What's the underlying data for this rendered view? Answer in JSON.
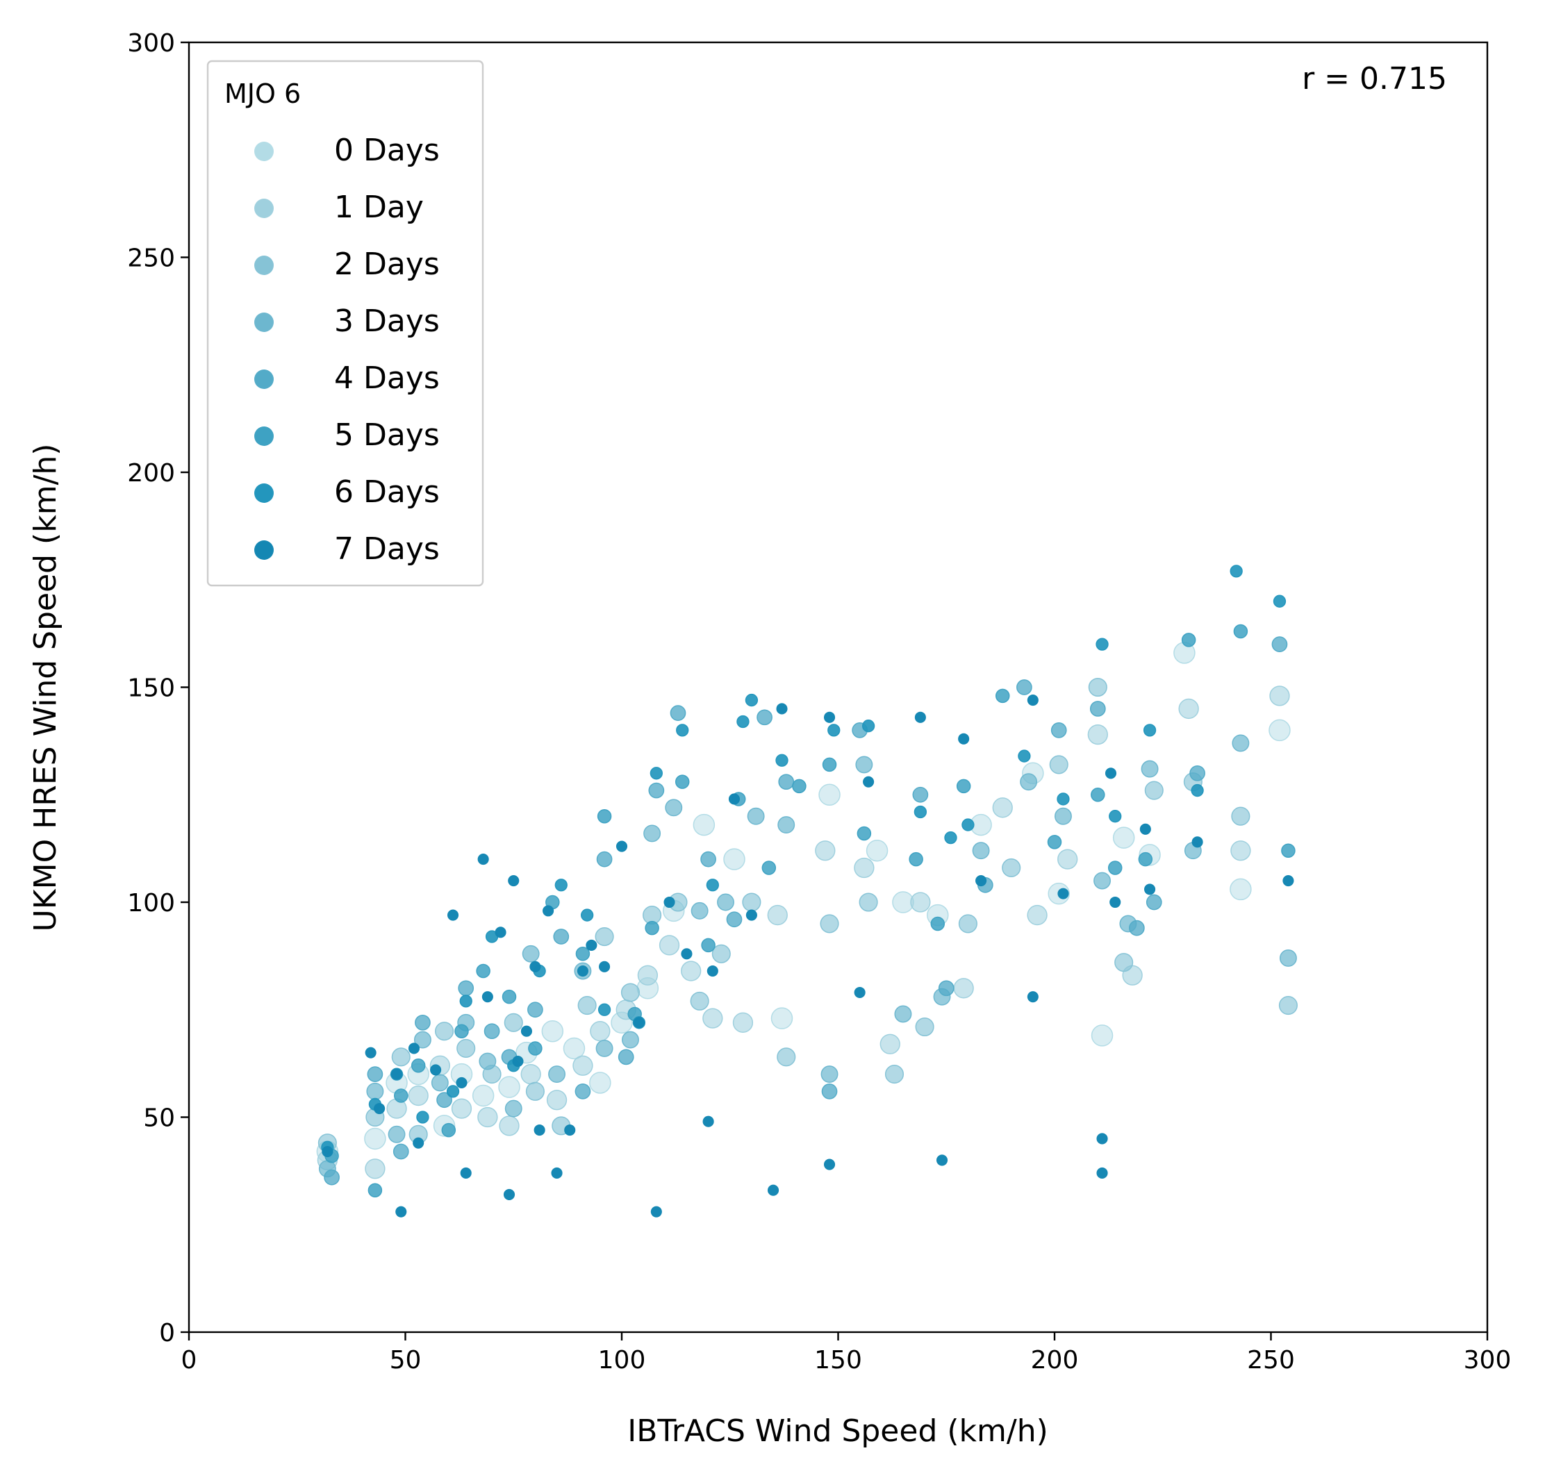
{
  "colors": {
    "series": [
      "#b3dce6",
      "#9fd0de",
      "#86c3d6",
      "#6db7cf",
      "#53abc8",
      "#3ea2c3",
      "#2396bd",
      "#1487b3"
    ],
    "axis": "#000000",
    "legend_border": "#cccccc"
  },
  "chart_data": {
    "type": "scatter",
    "xlabel": "IBTrACS Wind Speed (km/h)",
    "ylabel": "UKMO HRES Wind Speed (km/h)",
    "xlim": [
      0,
      300
    ],
    "ylim": [
      0,
      300
    ],
    "xticks": [
      "0",
      "50",
      "100",
      "150",
      "200",
      "250",
      "300"
    ],
    "yticks": [
      "0",
      "50",
      "100",
      "150",
      "200",
      "250",
      "300"
    ],
    "annotation": "r = 0.715",
    "legend": {
      "title": "MJO 6",
      "placement": "top-left",
      "entries": [
        "0 Days",
        "1 Day",
        "2 Days",
        "3 Days",
        "4 Days",
        "5 Days",
        "6 Days",
        "7 Days"
      ]
    },
    "series": [
      {
        "name": "0 Days",
        "points": [
          [
            32,
            42
          ],
          [
            43,
            45
          ],
          [
            48,
            58
          ],
          [
            53,
            60
          ],
          [
            59,
            48
          ],
          [
            63,
            60
          ],
          [
            68,
            55
          ],
          [
            74,
            57
          ],
          [
            78,
            65
          ],
          [
            84,
            70
          ],
          [
            89,
            66
          ],
          [
            95,
            58
          ],
          [
            100,
            72
          ],
          [
            106,
            80
          ],
          [
            112,
            98
          ],
          [
            119,
            118
          ],
          [
            126,
            110
          ],
          [
            137,
            73
          ],
          [
            148,
            125
          ],
          [
            159,
            112
          ],
          [
            165,
            100
          ],
          [
            173,
            97
          ],
          [
            183,
            118
          ],
          [
            195,
            130
          ],
          [
            201,
            102
          ],
          [
            211,
            69
          ],
          [
            216,
            115
          ],
          [
            222,
            111
          ],
          [
            230,
            158
          ],
          [
            243,
            103
          ],
          [
            252,
            140
          ]
        ]
      },
      {
        "name": "1 Day",
        "points": [
          [
            32,
            40
          ],
          [
            43,
            38
          ],
          [
            48,
            52
          ],
          [
            53,
            55
          ],
          [
            58,
            62
          ],
          [
            63,
            52
          ],
          [
            69,
            50
          ],
          [
            74,
            48
          ],
          [
            79,
            60
          ],
          [
            85,
            54
          ],
          [
            91,
            62
          ],
          [
            95,
            70
          ],
          [
            101,
            75
          ],
          [
            106,
            83
          ],
          [
            111,
            90
          ],
          [
            116,
            84
          ],
          [
            121,
            73
          ],
          [
            128,
            72
          ],
          [
            136,
            97
          ],
          [
            147,
            112
          ],
          [
            156,
            108
          ],
          [
            162,
            67
          ],
          [
            169,
            100
          ],
          [
            179,
            80
          ],
          [
            188,
            122
          ],
          [
            196,
            97
          ],
          [
            203,
            110
          ],
          [
            210,
            139
          ],
          [
            218,
            83
          ],
          [
            231,
            145
          ],
          [
            243,
            112
          ],
          [
            252,
            148
          ]
        ]
      },
      {
        "name": "2 Days",
        "points": [
          [
            32,
            44
          ],
          [
            43,
            50
          ],
          [
            49,
            64
          ],
          [
            53,
            46
          ],
          [
            59,
            70
          ],
          [
            64,
            66
          ],
          [
            70,
            60
          ],
          [
            75,
            72
          ],
          [
            80,
            56
          ],
          [
            86,
            48
          ],
          [
            92,
            76
          ],
          [
            96,
            92
          ],
          [
            102,
            79
          ],
          [
            107,
            97
          ],
          [
            113,
            100
          ],
          [
            118,
            77
          ],
          [
            123,
            88
          ],
          [
            130,
            100
          ],
          [
            138,
            64
          ],
          [
            148,
            95
          ],
          [
            157,
            100
          ],
          [
            163,
            60
          ],
          [
            170,
            71
          ],
          [
            180,
            95
          ],
          [
            190,
            108
          ],
          [
            201,
            132
          ],
          [
            210,
            150
          ],
          [
            216,
            86
          ],
          [
            223,
            126
          ],
          [
            232,
            128
          ],
          [
            243,
            120
          ],
          [
            254,
            76
          ]
        ]
      },
      {
        "name": "3 Days",
        "points": [
          [
            32,
            38
          ],
          [
            43,
            56
          ],
          [
            48,
            46
          ],
          [
            54,
            68
          ],
          [
            58,
            58
          ],
          [
            64,
            72
          ],
          [
            69,
            63
          ],
          [
            75,
            52
          ],
          [
            79,
            88
          ],
          [
            85,
            60
          ],
          [
            91,
            84
          ],
          [
            96,
            66
          ],
          [
            102,
            68
          ],
          [
            107,
            116
          ],
          [
            112,
            122
          ],
          [
            118,
            98
          ],
          [
            124,
            100
          ],
          [
            131,
            120
          ],
          [
            138,
            118
          ],
          [
            148,
            60
          ],
          [
            156,
            132
          ],
          [
            165,
            74
          ],
          [
            174,
            78
          ],
          [
            183,
            112
          ],
          [
            194,
            128
          ],
          [
            202,
            120
          ],
          [
            211,
            105
          ],
          [
            217,
            95
          ],
          [
            222,
            131
          ],
          [
            232,
            112
          ],
          [
            243,
            137
          ],
          [
            254,
            87
          ]
        ]
      },
      {
        "name": "4 Days",
        "points": [
          [
            33,
            36
          ],
          [
            43,
            60
          ],
          [
            49,
            42
          ],
          [
            54,
            72
          ],
          [
            59,
            54
          ],
          [
            64,
            80
          ],
          [
            70,
            70
          ],
          [
            74,
            64
          ],
          [
            80,
            75
          ],
          [
            86,
            92
          ],
          [
            91,
            56
          ],
          [
            96,
            110
          ],
          [
            101,
            64
          ],
          [
            108,
            126
          ],
          [
            113,
            144
          ],
          [
            120,
            110
          ],
          [
            126,
            96
          ],
          [
            133,
            143
          ],
          [
            138,
            128
          ],
          [
            148,
            56
          ],
          [
            155,
            140
          ],
          [
            169,
            125
          ],
          [
            175,
            80
          ],
          [
            184,
            104
          ],
          [
            193,
            150
          ],
          [
            201,
            140
          ],
          [
            210,
            145
          ],
          [
            219,
            94
          ],
          [
            223,
            100
          ],
          [
            233,
            130
          ],
          [
            252,
            160
          ]
        ]
      },
      {
        "name": "5 Days",
        "points": [
          [
            33,
            41
          ],
          [
            43,
            33
          ],
          [
            49,
            55
          ],
          [
            53,
            62
          ],
          [
            60,
            47
          ],
          [
            63,
            70
          ],
          [
            68,
            84
          ],
          [
            74,
            78
          ],
          [
            80,
            66
          ],
          [
            84,
            100
          ],
          [
            91,
            88
          ],
          [
            96,
            120
          ],
          [
            103,
            74
          ],
          [
            107,
            94
          ],
          [
            114,
            128
          ],
          [
            120,
            90
          ],
          [
            127,
            124
          ],
          [
            134,
            108
          ],
          [
            141,
            127
          ],
          [
            148,
            132
          ],
          [
            156,
            116
          ],
          [
            168,
            110
          ],
          [
            173,
            95
          ],
          [
            179,
            127
          ],
          [
            188,
            148
          ],
          [
            200,
            114
          ],
          [
            210,
            125
          ],
          [
            214,
            108
          ],
          [
            221,
            110
          ],
          [
            231,
            161
          ],
          [
            243,
            163
          ],
          [
            254,
            112
          ]
        ]
      },
      {
        "name": "6 Days",
        "points": [
          [
            32,
            43
          ],
          [
            43,
            53
          ],
          [
            48,
            60
          ],
          [
            54,
            50
          ],
          [
            61,
            56
          ],
          [
            64,
            77
          ],
          [
            70,
            92
          ],
          [
            75,
            62
          ],
          [
            81,
            84
          ],
          [
            86,
            104
          ],
          [
            92,
            97
          ],
          [
            96,
            75
          ],
          [
            104,
            72
          ],
          [
            108,
            130
          ],
          [
            114,
            140
          ],
          [
            121,
            104
          ],
          [
            128,
            142
          ],
          [
            130,
            147
          ],
          [
            137,
            133
          ],
          [
            149,
            140
          ],
          [
            157,
            141
          ],
          [
            169,
            121
          ],
          [
            176,
            115
          ],
          [
            180,
            118
          ],
          [
            193,
            134
          ],
          [
            202,
            124
          ],
          [
            211,
            160
          ],
          [
            214,
            120
          ],
          [
            222,
            140
          ],
          [
            233,
            126
          ],
          [
            242,
            177
          ],
          [
            252,
            170
          ]
        ]
      },
      {
        "name": "7 Days",
        "points": [
          [
            32,
            42
          ],
          [
            42,
            65
          ],
          [
            44,
            52
          ],
          [
            48,
            60
          ],
          [
            49,
            28
          ],
          [
            52,
            66
          ],
          [
            53,
            44
          ],
          [
            57,
            61
          ],
          [
            61,
            97
          ],
          [
            63,
            58
          ],
          [
            64,
            37
          ],
          [
            68,
            110
          ],
          [
            69,
            78
          ],
          [
            72,
            93
          ],
          [
            74,
            32
          ],
          [
            75,
            105
          ],
          [
            76,
            63
          ],
          [
            78,
            70
          ],
          [
            80,
            85
          ],
          [
            81,
            47
          ],
          [
            83,
            98
          ],
          [
            85,
            37
          ],
          [
            88,
            47
          ],
          [
            91,
            84
          ],
          [
            93,
            90
          ],
          [
            96,
            85
          ],
          [
            100,
            113
          ],
          [
            104,
            72
          ],
          [
            108,
            28
          ],
          [
            111,
            100
          ],
          [
            115,
            88
          ],
          [
            120,
            49
          ],
          [
            121,
            84
          ],
          [
            126,
            124
          ],
          [
            130,
            97
          ],
          [
            135,
            33
          ],
          [
            137,
            145
          ],
          [
            148,
            143
          ],
          [
            148,
            39
          ],
          [
            155,
            79
          ],
          [
            157,
            128
          ],
          [
            169,
            143
          ],
          [
            174,
            40
          ],
          [
            179,
            138
          ],
          [
            183,
            105
          ],
          [
            195,
            78
          ],
          [
            195,
            147
          ],
          [
            202,
            102
          ],
          [
            211,
            45
          ],
          [
            211,
            37
          ],
          [
            213,
            130
          ],
          [
            214,
            100
          ],
          [
            221,
            117
          ],
          [
            222,
            103
          ],
          [
            233,
            114
          ],
          [
            254,
            105
          ]
        ]
      }
    ]
  }
}
